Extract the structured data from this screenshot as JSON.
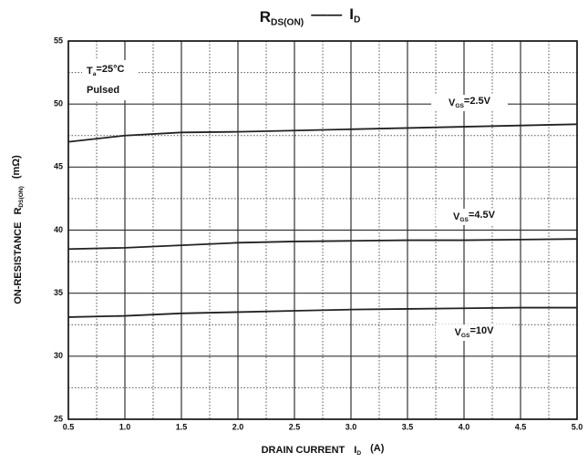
{
  "chart_data": {
    "type": "line",
    "title": [
      {
        "text": "R"
      },
      {
        "text": "DS(ON)",
        "sub": true
      },
      {
        "text": "——"
      },
      {
        "text": "I"
      },
      {
        "text": "D",
        "sub": true
      }
    ],
    "xlabel": [
      {
        "text": "DRAIN CURRENT"
      },
      {
        "text": "I"
      },
      {
        "text": "D",
        "sub": true
      },
      {
        "text": "(A)"
      }
    ],
    "ylabel": [
      {
        "text": "ON-RESISTANCE"
      },
      {
        "text": "R"
      },
      {
        "text": "DS(ON)",
        "sub": true
      },
      {
        "text": "(mΩ)"
      }
    ],
    "annotations": [
      [
        {
          "text": "T"
        },
        {
          "text": "a",
          "sub": true
        },
        {
          "text": "=25°C"
        }
      ],
      [
        {
          "text": "Pulsed"
        }
      ]
    ],
    "x": [
      0.5,
      1,
      1.5,
      2,
      2.5,
      3,
      3.5,
      4,
      4.5,
      5
    ],
    "series": [
      {
        "label": [
          {
            "text": "V"
          },
          {
            "text": "GS",
            "sub": true
          },
          {
            "text": "=2.5V"
          }
        ],
        "color": "#222222",
        "values": [
          47.0,
          47.5,
          47.75,
          47.8,
          47.9,
          48.0,
          48.1,
          48.2,
          48.3,
          48.4
        ]
      },
      {
        "label": [
          {
            "text": "V"
          },
          {
            "text": "GS",
            "sub": true
          },
          {
            "text": "=4.5V"
          }
        ],
        "color": "#222222",
        "values": [
          38.5,
          38.6,
          38.8,
          39.0,
          39.1,
          39.15,
          39.2,
          39.2,
          39.25,
          39.3
        ]
      },
      {
        "label": [
          {
            "text": "V"
          },
          {
            "text": "GS",
            "sub": true
          },
          {
            "text": "=10V"
          }
        ],
        "color": "#222222",
        "values": [
          33.1,
          33.2,
          33.4,
          33.5,
          33.6,
          33.7,
          33.75,
          33.8,
          33.85,
          33.85
        ]
      }
    ],
    "xlim": [
      0.5,
      5
    ],
    "ylim": [
      25,
      55
    ],
    "xticks": [
      0.5,
      {
        "value": 1,
        "label": "1.0"
      },
      1.5,
      {
        "value": 2,
        "label": "2.0"
      },
      2.5,
      {
        "value": 3,
        "label": "3.0"
      },
      3.5,
      {
        "value": 4,
        "label": "4.0"
      },
      4.5,
      {
        "value": 5,
        "label": "5.0"
      }
    ],
    "yticks": [
      25,
      30,
      35,
      40,
      45,
      50,
      55
    ],
    "minor_xticks": [
      0.75,
      1.25,
      1.75,
      2.25,
      2.75,
      3.25,
      3.75,
      4.25,
      4.75
    ],
    "minor_yticks": [
      27.5,
      32.5,
      37.5,
      42.5,
      47.5,
      52.5
    ],
    "grid": true
  }
}
